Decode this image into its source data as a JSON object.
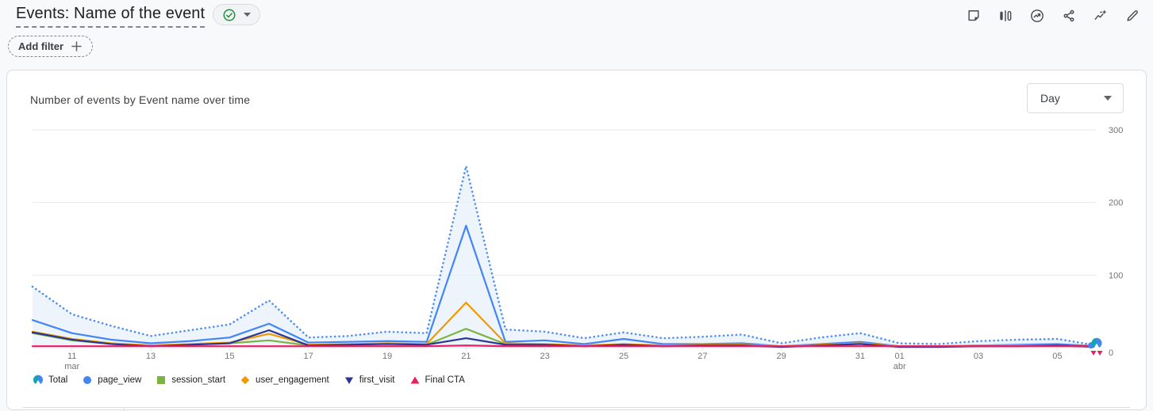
{
  "header": {
    "title": "Events: Name of the event",
    "status_badge": {
      "icon": "check-circle",
      "color": "#1E8E3E"
    },
    "toolbar_icons": [
      "note",
      "comparison",
      "insights-circle",
      "share",
      "insights-sparkle",
      "edit"
    ]
  },
  "filters": {
    "add_filter_label": "Add filter"
  },
  "card": {
    "title": "Number of events by Event name over time",
    "interval_select": {
      "value": "Day"
    }
  },
  "chart_data": {
    "type": "line",
    "title": "Number of events by Event name over time",
    "x_unit": "day",
    "grid": true,
    "legend_position": "bottom",
    "ylim": [
      0,
      300
    ],
    "y_ticks": [
      0,
      100,
      200,
      300
    ],
    "x": [
      "10 mar",
      "11 mar",
      "12 mar",
      "13 mar",
      "14 mar",
      "15 mar",
      "16 mar",
      "17 mar",
      "18 mar",
      "19 mar",
      "20 mar",
      "21 mar",
      "22 mar",
      "23 mar",
      "24 mar",
      "25 mar",
      "26 mar",
      "27 mar",
      "28 mar",
      "29 mar",
      "30 mar",
      "31 mar",
      "01 abr",
      "02 abr",
      "03 abr",
      "04 abr",
      "05 abr",
      "06 abr"
    ],
    "x_ticks": [
      {
        "i": 1,
        "label": "11",
        "month": "mar"
      },
      {
        "i": 3,
        "label": "13"
      },
      {
        "i": 5,
        "label": "15"
      },
      {
        "i": 7,
        "label": "17"
      },
      {
        "i": 9,
        "label": "19"
      },
      {
        "i": 11,
        "label": "21"
      },
      {
        "i": 13,
        "label": "23"
      },
      {
        "i": 15,
        "label": "25"
      },
      {
        "i": 17,
        "label": "27"
      },
      {
        "i": 19,
        "label": "29"
      },
      {
        "i": 21,
        "label": "31"
      },
      {
        "i": 22,
        "label": "01",
        "month": "abr"
      },
      {
        "i": 24,
        "label": "03"
      },
      {
        "i": 26,
        "label": "05"
      }
    ],
    "series": [
      {
        "name": "Total",
        "color": "#4E8FF0",
        "line": "dotted",
        "area": "#E9F1FB",
        "marker": "total",
        "marker_colors": [
          "#12A4AF",
          "#4285F4"
        ],
        "values": [
          84,
          46,
          30,
          16,
          24,
          32,
          65,
          14,
          16,
          22,
          20,
          250,
          25,
          22,
          13,
          21,
          13,
          15,
          18,
          6,
          14,
          20,
          6,
          5,
          9,
          11,
          12,
          3
        ]
      },
      {
        "name": "page_view",
        "color": "#4285F4",
        "line": "solid",
        "marker": "circle",
        "values": [
          38,
          20,
          11,
          6,
          9,
          14,
          33,
          7,
          8,
          9,
          8,
          168,
          8,
          10,
          5,
          12,
          5,
          5,
          6,
          2,
          5,
          8,
          2,
          2,
          3,
          4,
          5,
          2
        ]
      },
      {
        "name": "session_start",
        "color": "#7CB342",
        "line": "solid",
        "marker": "square",
        "values": [
          20,
          10,
          5,
          3,
          4,
          6,
          10,
          3,
          4,
          5,
          4,
          26,
          5,
          4,
          3,
          4,
          3,
          3,
          4,
          1,
          3,
          5,
          1,
          1,
          2,
          3,
          3,
          1
        ]
      },
      {
        "name": "user_engagement",
        "color": "#F29900",
        "line": "solid",
        "marker": "diamond",
        "values": [
          22,
          12,
          6,
          3,
          5,
          7,
          19,
          4,
          5,
          6,
          5,
          62,
          6,
          5,
          3,
          5,
          3,
          4,
          4,
          2,
          4,
          6,
          2,
          2,
          3,
          3,
          3,
          1
        ]
      },
      {
        "name": "first_visit",
        "color": "#283593",
        "line": "solid",
        "marker": "triangle-down",
        "values": [
          21,
          11,
          5,
          2,
          4,
          6,
          24,
          3,
          4,
          5,
          4,
          13,
          4,
          4,
          2,
          4,
          2,
          3,
          3,
          1,
          3,
          5,
          1,
          1,
          2,
          2,
          3,
          1
        ]
      },
      {
        "name": "Final CTA",
        "color": "#E91E63",
        "line": "solid",
        "marker": "triangle-up",
        "values": [
          2,
          2,
          2,
          2,
          2,
          2,
          2,
          2,
          2,
          2,
          2,
          3,
          2,
          2,
          2,
          2,
          2,
          2,
          2,
          2,
          2,
          2,
          2,
          2,
          2,
          2,
          2,
          2
        ]
      }
    ]
  }
}
